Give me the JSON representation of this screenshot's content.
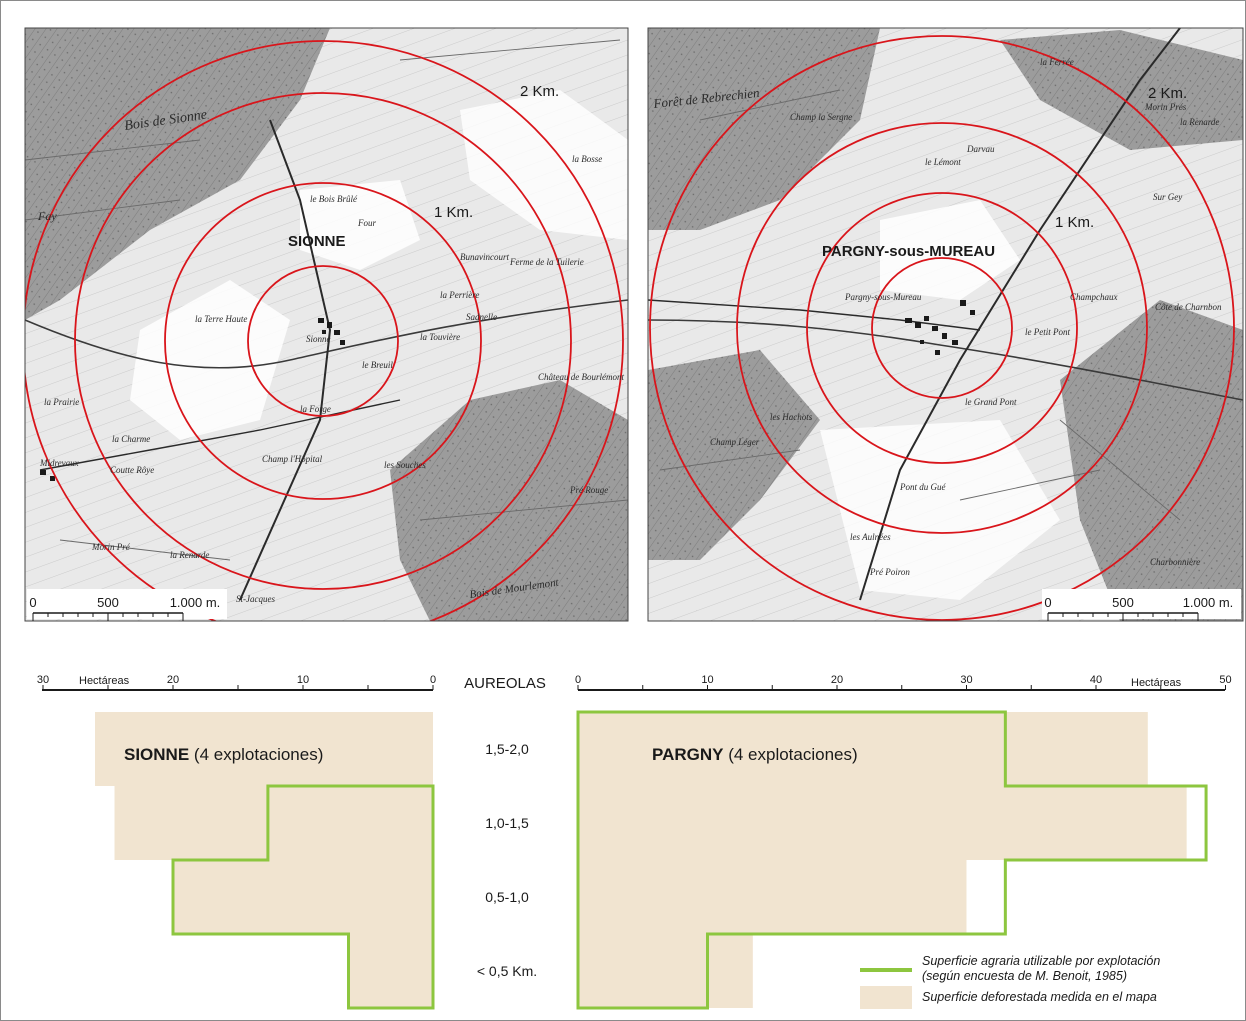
{
  "maps": {
    "left": {
      "village": "SIONNE",
      "ring_labels": [
        "1 Km.",
        "2 Km."
      ],
      "scale_ticks": [
        "0",
        "500",
        "1.000 m."
      ],
      "place_names": [
        "Bois de Sionne",
        "Fay",
        "le Bois Brûlé",
        "Four",
        "la Terre Haute",
        "Sionne",
        "le Breuil",
        "la Forge",
        "Champ l'Hôpital",
        "Midrevaux",
        "la Charme",
        "Coutte Rôye",
        "Morin Pré",
        "la Renarde",
        "Bois de Mourlemont",
        "Château de Bourlémont",
        "les Souches",
        "la Prairie",
        "la Bosse",
        "Pré Rouge",
        "la Touvière",
        "Sadnelle",
        "la Perrière",
        "Bunavincourt",
        "Ferme de la Tuilerie",
        "St-Jacques"
      ]
    },
    "right": {
      "village": "PARGNY-sous-MUREAU",
      "ring_labels": [
        "1 Km.",
        "2 Km."
      ],
      "scale_ticks": [
        "0",
        "500",
        "1.000 m."
      ],
      "place_names": [
        "Forêt de Rebrechien",
        "Champ la Sergne",
        "le Lémont",
        "Darvau",
        "Pargny-sous-Mureau",
        "Champchaux",
        "le Petit Pont",
        "les Hachots",
        "Champ Léger",
        "le Grand Pont",
        "Pont du Gué",
        "les Aulnées",
        "la Renarde",
        "Morin Prés",
        "Sur Gey",
        "Côte de Charnbon",
        "Pré Poiron",
        "Charbonnière",
        "la Ferrée"
      ]
    }
  },
  "chart_data": {
    "type": "bar",
    "categories_label": "AUREOLAS",
    "categories": [
      "1,5-2,0",
      "1,0-1,5",
      "0,5-1,0",
      "< 0,5 Km."
    ],
    "unit_label": "Hectáreas",
    "left_axis": {
      "ticks": [
        "30",
        "20",
        "10",
        "0"
      ],
      "range": [
        0,
        30
      ]
    },
    "right_axis": {
      "ticks": [
        "0",
        "10",
        "20",
        "30",
        "40",
        "50"
      ],
      "range": [
        0,
        50
      ]
    },
    "panels": [
      {
        "title_bold": "SIONNE",
        "title_rest": " (4 explotaciones)",
        "series": [
          {
            "name": "Superficie deforestada medida en el mapa",
            "values": [
              26,
              24.5,
              20,
              6.5
            ]
          },
          {
            "name": "Superficie agraria utilizable por explotación",
            "values": [
              0,
              12.7,
              20,
              6.5
            ]
          }
        ]
      },
      {
        "title_bold": "PARGNY",
        "title_rest": " (4 explotaciones)",
        "series": [
          {
            "name": "Superficie deforestada medida en el mapa",
            "values": [
              44,
              47,
              30,
              13.5
            ]
          },
          {
            "name": "Superficie agraria utilizable por explotación",
            "values": [
              33,
              48.5,
              33,
              10
            ]
          }
        ]
      }
    ],
    "legend": [
      {
        "text": "Superficie agraria utilizable por explotación",
        "text2": "(según encuesta de  M. Benoit, 1985)",
        "color": "#8dc63f"
      },
      {
        "text": "Superficie deforestada medida en el mapa",
        "color": "#f1e4d0"
      }
    ],
    "colors": {
      "ring": "#d9151b",
      "fill": "#f1e4d0",
      "outline": "#8dc63f"
    }
  }
}
